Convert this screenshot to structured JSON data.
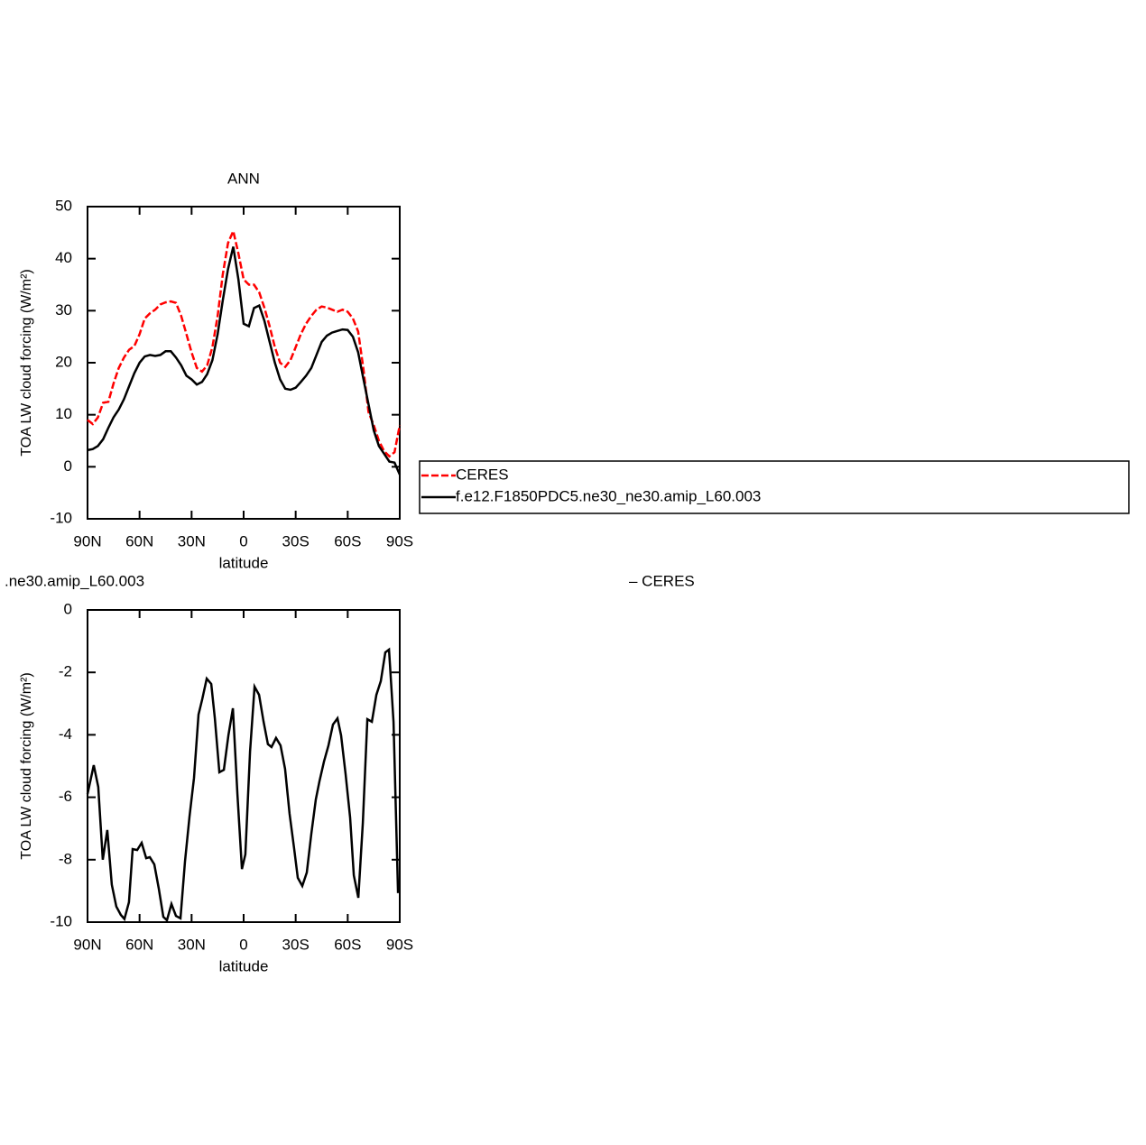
{
  "chart_data": [
    {
      "type": "line",
      "title": "ANN",
      "x_label": "latitude",
      "y_label": "TOA LW cloud forcing (W/m²)",
      "xlim": [
        90,
        -90
      ],
      "ylim": [
        -10,
        50
      ],
      "xticks": [
        {
          "value": 90,
          "label": "90N"
        },
        {
          "value": 60,
          "label": "60N"
        },
        {
          "value": 30,
          "label": "30N"
        },
        0,
        {
          "value": -30,
          "label": "30S"
        },
        {
          "value": -60,
          "label": "60S"
        },
        {
          "value": -90,
          "label": "90S"
        }
      ],
      "yticks": [
        -10,
        0,
        10,
        20,
        30,
        40,
        50
      ],
      "legend": "right",
      "x": [
        90,
        87,
        84,
        81,
        78,
        75,
        72,
        69,
        66,
        63,
        60,
        57,
        54,
        51,
        48,
        45,
        42,
        39,
        36,
        33,
        30,
        27,
        24,
        21,
        18,
        15,
        12,
        9,
        6,
        3,
        0,
        -3,
        -6,
        -9,
        -12,
        -15,
        -18,
        -21,
        -24,
        -27,
        -30,
        -33,
        -36,
        -39,
        -42,
        -45,
        -48,
        -51,
        -54,
        -57,
        -60,
        -63,
        -66,
        -69,
        -72,
        -75,
        -78,
        -81,
        -84,
        -87,
        -90
      ],
      "series": [
        {
          "name": "CERES",
          "color": "#ff0000",
          "line_style": "dashed",
          "values": [
            9,
            8.2,
            9.5,
            12.3,
            12.5,
            16,
            19,
            21,
            22.5,
            23.2,
            25.5,
            28.5,
            29.5,
            30.2,
            31.2,
            31.6,
            31.8,
            31.5,
            29,
            25.5,
            22,
            19,
            18.3,
            19.5,
            23,
            29,
            37,
            43,
            45.3,
            41,
            36,
            35,
            35,
            33.5,
            30.5,
            27,
            23,
            20,
            19.2,
            20.5,
            23,
            25.5,
            27.5,
            29,
            30.2,
            30.8,
            30.6,
            30.2,
            29.8,
            30.2,
            29.8,
            28.5,
            26,
            19,
            10.5,
            8,
            5,
            3,
            2,
            2.8,
            8
          ]
        },
        {
          "name": "f.e12.F1850PDC5.ne30_ne30.amip_L60.003",
          "color": "#000000",
          "line_style": "solid",
          "values": [
            3.2,
            3.4,
            4,
            5.3,
            7.5,
            9.5,
            11,
            13,
            15.5,
            18,
            20,
            21.2,
            21.5,
            21.3,
            21.5,
            22.2,
            22.2,
            21,
            19.5,
            17.5,
            16.8,
            15.8,
            16.3,
            17.8,
            20.5,
            25.5,
            32,
            38,
            42.3,
            36,
            27.5,
            27,
            30.5,
            31,
            28,
            24,
            20,
            16.8,
            15,
            14.8,
            15.2,
            16.3,
            17.5,
            19,
            21.5,
            24,
            25.2,
            25.8,
            26.1,
            26.4,
            26.3,
            25,
            22,
            17,
            12,
            7,
            4,
            2.5,
            1,
            0.8,
            -1.5
          ]
        }
      ]
    },
    {
      "type": "line",
      "title_left": ".ne30.amip_L60.003",
      "title_right": "– CERES",
      "x_label": "latitude",
      "y_label": "TOA LW cloud forcing (W/m²)",
      "xlim": [
        90,
        -90
      ],
      "ylim": [
        -10,
        0
      ],
      "xticks": [
        {
          "value": 90,
          "label": "90N"
        },
        {
          "value": 60,
          "label": "60N"
        },
        {
          "value": 30,
          "label": "30N"
        },
        0,
        {
          "value": -30,
          "label": "30S"
        },
        {
          "value": -60,
          "label": "60S"
        },
        {
          "value": -90,
          "label": "90S"
        }
      ],
      "yticks": [
        -10,
        -8,
        -6,
        -4,
        -2,
        0
      ],
      "x": [
        90,
        86.4,
        83.8,
        81.2,
        78.6,
        76,
        73.4,
        70.8,
        68.7,
        66.1,
        64,
        61.4,
        58.8,
        56.2,
        54.1,
        51.5,
        48.9,
        46.3,
        44.2,
        41.6,
        39,
        36.4,
        33.8,
        31.2,
        28.6,
        26,
        23.9,
        21.3,
        18.7,
        16.6,
        14,
        11.4,
        8.8,
        6.2,
        3.6,
        1,
        -1,
        -3.7,
        -6.3,
        -8.9,
        -11.5,
        -14,
        -16.1,
        -18.7,
        -21.3,
        -23.9,
        -26.5,
        -29.1,
        -31.2,
        -33.8,
        -36.4,
        -39,
        -41.6,
        -43.7,
        -46.3,
        -48.9,
        -51.5,
        -54.1,
        -56.2,
        -58.8,
        -61.4,
        -63.5,
        -66.1,
        -68.7,
        -71.3,
        -73.9,
        -76.5,
        -79.1,
        -81.7,
        -83.8,
        -86.4,
        -89
      ],
      "series": [
        {
          "color": "#000000",
          "line_style": "solid",
          "values": [
            -5.9,
            -4.97,
            -5.67,
            -8.0,
            -7.05,
            -8.8,
            -9.5,
            -9.77,
            -9.9,
            -9.36,
            -7.66,
            -7.69,
            -7.46,
            -7.95,
            -7.92,
            -8.15,
            -8.93,
            -9.83,
            -9.94,
            -9.42,
            -9.8,
            -9.88,
            -8.06,
            -6.62,
            -5.38,
            -3.35,
            -2.86,
            -2.2,
            -2.37,
            -3.47,
            -5.2,
            -5.12,
            -4.02,
            -3.15,
            -5.9,
            -8.3,
            -7.83,
            -4.54,
            -2.46,
            -2.72,
            -3.58,
            -4.3,
            -4.39,
            -4.1,
            -4.34,
            -5.09,
            -6.53,
            -7.63,
            -8.58,
            -8.84,
            -8.41,
            -7.17,
            -6.07,
            -5.49,
            -4.86,
            -4.34,
            -3.67,
            -3.47,
            -4.02,
            -5.26,
            -6.65,
            -8.5,
            -9.22,
            -6.82,
            -3.5,
            -3.58,
            -2.72,
            -2.28,
            -1.36,
            -1.27,
            -3.58,
            -9.07
          ]
        }
      ]
    }
  ]
}
